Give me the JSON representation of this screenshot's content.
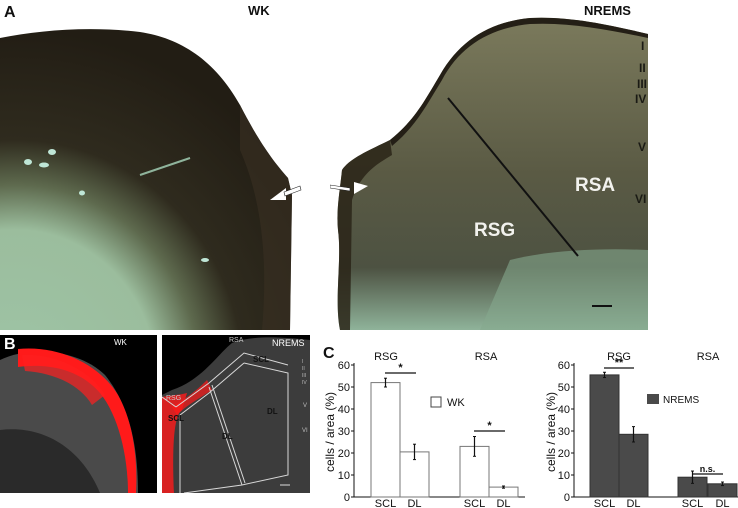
{
  "figure": {
    "panels": {
      "A": {
        "letter": "A",
        "left_title": "WK",
        "right_title": "NREMS",
        "region_labels": [
          "RSG",
          "RSA"
        ],
        "layers": [
          "I",
          "II",
          "III",
          "IV",
          "V",
          "VI"
        ]
      },
      "B": {
        "letter": "B",
        "left_title": "WK",
        "right_title": "NREMS",
        "region_labels": [
          "RSA",
          "RSG"
        ],
        "zone_labels": [
          "SCL",
          "SCL",
          "DL",
          "DL"
        ],
        "layers": [
          "I",
          "II",
          "III",
          "IV",
          "V",
          "VI"
        ]
      },
      "C": {
        "letter": "C"
      }
    },
    "colors": {
      "tissue_dark": "#2a2418",
      "tissue_light": "#9fc3a6",
      "wk_bar": "#ffffff",
      "nrems_bar": "#4a4a4a",
      "stain_red": "#ff1a1a"
    }
  },
  "chart_data": [
    {
      "type": "bar",
      "title": "",
      "legend": [
        "WK"
      ],
      "group_labels": [
        "RSG",
        "RSA"
      ],
      "categories": [
        "SCL",
        "DL",
        "SCL",
        "DL"
      ],
      "series": [
        {
          "name": "WK",
          "values": [
            52,
            20.5,
            23,
            4.5
          ],
          "errors": [
            2,
            3.5,
            4.5,
            0.5
          ],
          "color": "#ffffff"
        }
      ],
      "significance": [
        {
          "group": "RSG",
          "label": "*"
        },
        {
          "group": "RSA",
          "label": "*"
        }
      ],
      "xlabel": "",
      "ylabel": "cells / area (%)",
      "yticks": [
        0,
        10,
        20,
        30,
        40,
        50,
        60
      ],
      "ylim": [
        0,
        60
      ]
    },
    {
      "type": "bar",
      "title": "",
      "legend": [
        "NREMS"
      ],
      "group_labels": [
        "RSG",
        "RSA"
      ],
      "categories": [
        "SCL",
        "DL",
        "SCL",
        "DL"
      ],
      "series": [
        {
          "name": "NREMS",
          "values": [
            55.5,
            28.5,
            9,
            6
          ],
          "errors": [
            1.2,
            3.5,
            2.8,
            0.8
          ],
          "color": "#4a4a4a"
        }
      ],
      "significance": [
        {
          "group": "RSG",
          "label": "**"
        },
        {
          "group": "RSA",
          "label": "n.s."
        }
      ],
      "xlabel": "",
      "ylabel": "cells / area (%)",
      "yticks": [
        0,
        10,
        20,
        30,
        40,
        50,
        60
      ],
      "ylim": [
        0,
        60
      ]
    }
  ]
}
